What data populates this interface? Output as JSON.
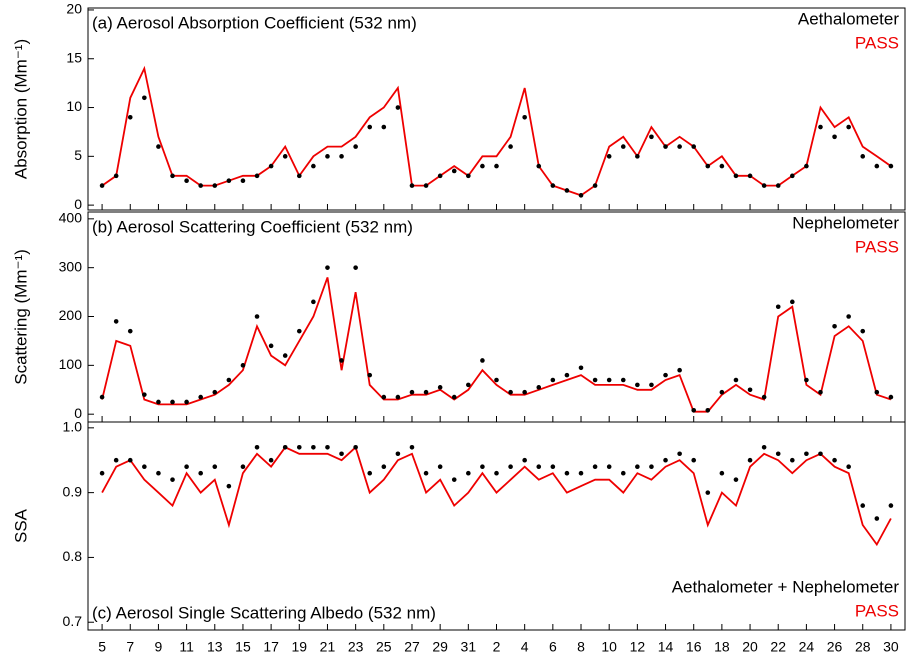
{
  "chart_data": [
    {
      "type": "line",
      "title": "(a) Aerosol Absorption Coefficient (532 nm)",
      "ylabel": "Absorption (Mm⁻¹)",
      "legend": "upper right",
      "x": [
        0,
        1,
        2,
        3,
        4,
        5,
        6,
        7,
        8,
        9,
        10,
        11,
        12,
        13,
        14,
        15,
        16,
        17,
        18,
        19,
        20,
        21,
        22,
        23,
        24,
        25,
        26,
        27,
        28,
        29,
        30,
        31,
        32,
        33,
        34,
        35,
        36,
        37,
        38,
        39,
        40,
        41,
        42,
        43,
        44,
        45,
        46,
        47,
        48,
        49,
        50,
        51,
        52,
        53,
        54,
        55,
        56
      ],
      "xlim": [
        -1,
        57
      ],
      "ylim": [
        -0.5,
        20.2
      ],
      "yticks": [
        0,
        5,
        10,
        15,
        20
      ],
      "series": [
        {
          "name": "Aethalometer",
          "color": "#000000",
          "mode": "markers",
          "values": [
            2,
            3,
            9,
            11,
            6,
            3,
            2.5,
            2,
            2,
            2.5,
            2.5,
            3,
            4,
            5,
            3,
            4,
            5,
            5,
            6,
            8,
            8,
            10,
            2,
            2,
            3,
            3.5,
            3,
            4,
            4,
            6,
            9,
            4,
            2,
            1.5,
            1,
            2,
            5,
            6,
            5,
            7,
            6,
            6,
            6,
            4,
            4,
            3,
            3,
            2,
            2,
            3,
            4,
            8,
            7,
            8,
            5,
            4,
            4
          ]
        },
        {
          "name": "PASS",
          "color": "#ee0000",
          "mode": "line",
          "values": [
            2,
            3,
            11,
            14,
            7,
            3,
            3,
            2,
            2,
            2.5,
            3,
            3,
            4,
            6,
            3,
            5,
            6,
            6,
            7,
            9,
            10,
            12,
            2,
            2,
            3,
            4,
            3,
            5,
            5,
            7,
            12,
            4,
            2,
            1.5,
            1,
            2,
            6,
            7,
            5,
            8,
            6,
            7,
            6,
            4,
            5,
            3,
            3,
            2,
            2,
            3,
            4,
            10,
            8,
            9,
            6,
            5,
            4
          ]
        }
      ]
    },
    {
      "type": "line",
      "title": "(b) Aerosol Scattering Coefficient (532 nm)",
      "ylabel": "Scattering (Mm⁻¹)",
      "legend": "upper right",
      "x": [
        0,
        1,
        2,
        3,
        4,
        5,
        6,
        7,
        8,
        9,
        10,
        11,
        12,
        13,
        14,
        15,
        16,
        17,
        18,
        19,
        20,
        21,
        22,
        23,
        24,
        25,
        26,
        27,
        28,
        29,
        30,
        31,
        32,
        33,
        34,
        35,
        36,
        37,
        38,
        39,
        40,
        41,
        42,
        43,
        44,
        45,
        46,
        47,
        48,
        49,
        50,
        51,
        52,
        53,
        54,
        55,
        56
      ],
      "xlim": [
        -1,
        57
      ],
      "ylim": [
        -16,
        414
      ],
      "yticks": [
        0,
        100,
        200,
        300,
        400
      ],
      "series": [
        {
          "name": "Nephelometer",
          "color": "#000000",
          "mode": "markers",
          "values": [
            35,
            190,
            170,
            40,
            25,
            25,
            25,
            35,
            45,
            70,
            100,
            200,
            140,
            120,
            170,
            230,
            300,
            110,
            300,
            80,
            35,
            35,
            45,
            45,
            55,
            35,
            60,
            110,
            70,
            45,
            45,
            55,
            70,
            80,
            95,
            70,
            70,
            70,
            60,
            60,
            80,
            90,
            8,
            8,
            45,
            70,
            50,
            35,
            220,
            230,
            70,
            45,
            180,
            200,
            170,
            45,
            35
          ]
        },
        {
          "name": "PASS",
          "color": "#ee0000",
          "mode": "line",
          "values": [
            30,
            150,
            140,
            30,
            20,
            20,
            20,
            30,
            40,
            60,
            90,
            180,
            120,
            100,
            150,
            200,
            280,
            90,
            250,
            60,
            30,
            30,
            40,
            40,
            50,
            30,
            50,
            90,
            60,
            40,
            40,
            50,
            60,
            70,
            80,
            60,
            60,
            60,
            50,
            50,
            70,
            80,
            5,
            5,
            40,
            60,
            40,
            30,
            200,
            220,
            60,
            40,
            160,
            180,
            150,
            40,
            30
          ]
        }
      ]
    },
    {
      "type": "line",
      "title": "(c) Aerosol Single Scattering Albedo (532 nm)",
      "ylabel": "SSA",
      "legend": "lower right",
      "x": [
        0,
        1,
        2,
        3,
        4,
        5,
        6,
        7,
        8,
        9,
        10,
        11,
        12,
        13,
        14,
        15,
        16,
        17,
        18,
        19,
        20,
        21,
        22,
        23,
        24,
        25,
        26,
        27,
        28,
        29,
        30,
        31,
        32,
        33,
        34,
        35,
        36,
        37,
        38,
        39,
        40,
        41,
        42,
        43,
        44,
        45,
        46,
        47,
        48,
        49,
        50,
        51,
        52,
        53,
        54,
        55,
        56
      ],
      "xlim": [
        -1,
        57
      ],
      "ylim": [
        0.688,
        1.009
      ],
      "yticks": [
        0.7,
        0.8,
        0.9,
        {
          "value": 1,
          "label": "1.0"
        }
      ],
      "xticks": [
        {
          "value": 0,
          "label": "5"
        },
        {
          "value": 2,
          "label": "7"
        },
        {
          "value": 4,
          "label": "9"
        },
        {
          "value": 6,
          "label": "11"
        },
        {
          "value": 8,
          "label": "13"
        },
        {
          "value": 10,
          "label": "15"
        },
        {
          "value": 12,
          "label": "17"
        },
        {
          "value": 14,
          "label": "19"
        },
        {
          "value": 16,
          "label": "21"
        },
        {
          "value": 18,
          "label": "23"
        },
        {
          "value": 20,
          "label": "25"
        },
        {
          "value": 22,
          "label": "27"
        },
        {
          "value": 24,
          "label": "29"
        },
        {
          "value": 26,
          "label": "31"
        },
        {
          "value": 28,
          "label": "2"
        },
        {
          "value": 30,
          "label": "4"
        },
        {
          "value": 32,
          "label": "6"
        },
        {
          "value": 34,
          "label": "8"
        },
        {
          "value": 36,
          "label": "10"
        },
        {
          "value": 38,
          "label": "12"
        },
        {
          "value": 40,
          "label": "14"
        },
        {
          "value": 42,
          "label": "16"
        },
        {
          "value": 44,
          "label": "18"
        },
        {
          "value": 46,
          "label": "20"
        },
        {
          "value": 48,
          "label": "22"
        },
        {
          "value": 50,
          "label": "24"
        },
        {
          "value": 52,
          "label": "26"
        },
        {
          "value": 54,
          "label": "28"
        },
        {
          "value": 56,
          "label": "30"
        }
      ],
      "series": [
        {
          "name": "Aethalometer + Nephelometer",
          "color": "#000000",
          "mode": "markers",
          "values": [
            0.93,
            0.95,
            0.95,
            0.94,
            0.93,
            0.92,
            0.94,
            0.93,
            0.94,
            0.91,
            0.94,
            0.97,
            0.95,
            0.97,
            0.97,
            0.97,
            0.97,
            0.96,
            0.97,
            0.93,
            0.94,
            0.96,
            0.97,
            0.93,
            0.94,
            0.92,
            0.93,
            0.94,
            0.93,
            0.94,
            0.95,
            0.94,
            0.94,
            0.93,
            0.93,
            0.94,
            0.94,
            0.93,
            0.94,
            0.94,
            0.95,
            0.96,
            0.95,
            0.9,
            0.93,
            0.92,
            0.95,
            0.97,
            0.96,
            0.95,
            0.96,
            0.96,
            0.95,
            0.94,
            0.88,
            0.86,
            0.88
          ]
        },
        {
          "name": "PASS",
          "color": "#ee0000",
          "mode": "line",
          "values": [
            0.9,
            0.94,
            0.95,
            0.92,
            0.9,
            0.88,
            0.93,
            0.9,
            0.92,
            0.85,
            0.93,
            0.96,
            0.94,
            0.97,
            0.96,
            0.96,
            0.96,
            0.95,
            0.97,
            0.9,
            0.92,
            0.95,
            0.96,
            0.9,
            0.92,
            0.88,
            0.9,
            0.93,
            0.9,
            0.92,
            0.94,
            0.92,
            0.93,
            0.9,
            0.91,
            0.92,
            0.92,
            0.9,
            0.93,
            0.92,
            0.94,
            0.95,
            0.93,
            0.85,
            0.9,
            0.88,
            0.94,
            0.96,
            0.95,
            0.93,
            0.95,
            0.96,
            0.94,
            0.93,
            0.85,
            0.82,
            0.86
          ]
        }
      ]
    }
  ]
}
